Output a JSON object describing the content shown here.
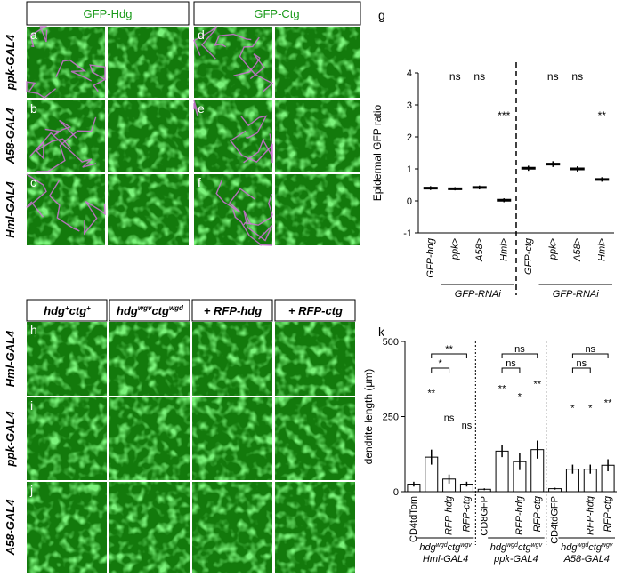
{
  "top": {
    "columns": [
      "GFP-Hdg",
      "GFP-Ctg"
    ],
    "rows": [
      "ppk-GAL4",
      "A58-GAL4",
      "Hml-GAL4"
    ],
    "letters": [
      "a",
      "b",
      "c",
      "d",
      "e",
      "f"
    ]
  },
  "bottom": {
    "columns": [
      [
        "hdg",
        "+",
        "ctg",
        "+"
      ],
      [
        "hdg",
        "wgv",
        "ctg",
        "wgd"
      ],
      [
        "+ RFP-hdg"
      ],
      [
        "+ RFP-ctg"
      ]
    ],
    "rows": [
      "Hml-GAL4",
      "ppk-GAL4",
      "A58-GAL4"
    ],
    "letters": [
      "h",
      "i",
      "j"
    ]
  },
  "chart_data": [
    {
      "type": "dot",
      "letter": "g",
      "y_label": "Epidermal GFP ratio",
      "categories": [
        "GFP-hdg",
        "ppk>",
        "A58>",
        "Hml>",
        "GFP-ctg",
        "ppk>",
        "A58>",
        "Hml>"
      ],
      "values": [
        0.4,
        0.38,
        0.42,
        0.02,
        1.02,
        1.15,
        1.0,
        0.67
      ],
      "errors": [
        0.06,
        0.05,
        0.06,
        0.06,
        0.08,
        0.09,
        0.08,
        0.07
      ],
      "annotations": [
        null,
        "ns",
        "ns",
        "***",
        null,
        "ns",
        "ns",
        "**"
      ],
      "group_labels": [
        "GFP-RNAi",
        "GFP-RNAi"
      ],
      "color": "#000000",
      "point_color": "#c8c8c8",
      "ylim": [
        -1,
        4
      ],
      "yticks": [
        -1,
        0,
        1,
        2,
        3,
        4
      ]
    },
    {
      "type": "bar",
      "letter": "k",
      "y_label": "dendrite length (μm)",
      "categories": [
        "CD4tdTom",
        null,
        "RFP-hdg",
        "RFP-ctg",
        "CD8GFP",
        null,
        "RFP-hdg",
        "RFP-ctg",
        "CD4tdGFP",
        null,
        "RFP-hdg",
        "RFP-ctg"
      ],
      "values": [
        25,
        115,
        42,
        25,
        8,
        135,
        100,
        140,
        10,
        75,
        75,
        88
      ],
      "errors": [
        8,
        25,
        15,
        8,
        3,
        20,
        28,
        30,
        3,
        15,
        15,
        20
      ],
      "annotations": [
        null,
        "**",
        "ns",
        "ns",
        null,
        "**",
        "*",
        "**",
        null,
        "*",
        "*",
        "**"
      ],
      "groups": [
        {
          "label": [
            "hdg",
            "wgd",
            "ctg",
            "wgv"
          ],
          "driver": "Hml-GAL4",
          "brackets": [
            "*",
            "**"
          ]
        },
        {
          "label": [
            "hdg",
            "wgd",
            "ctg",
            "wgv"
          ],
          "driver": "ppk-GAL4",
          "brackets": [
            "ns",
            "ns"
          ]
        },
        {
          "label": [
            "hdg",
            "wgd",
            "ctg",
            "wgv"
          ],
          "driver": "A58-GAL4",
          "brackets": [
            "ns",
            "ns"
          ]
        }
      ],
      "color": "#000000",
      "ylim": [
        0,
        500
      ],
      "yticks": [
        0,
        250,
        500
      ]
    }
  ]
}
